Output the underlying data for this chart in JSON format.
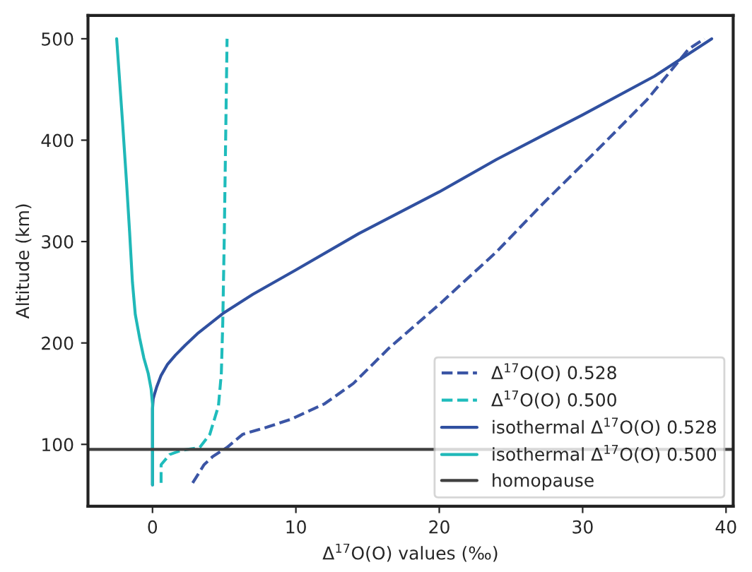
{
  "chart_data": {
    "type": "line",
    "xlabel": "Δ$^{17}$O(O) values (‰)",
    "ylabel": "Altitude (km)",
    "xlim": [
      -4.5,
      40.5
    ],
    "ylim": [
      39,
      523
    ],
    "xticks": [
      0,
      10,
      20,
      30,
      40
    ],
    "yticks": [
      100,
      200,
      300,
      400,
      500
    ],
    "grid": false,
    "legend": "bottom right",
    "marker": "none",
    "series": [
      {
        "name": "Δ$^{17}$O(O) 0.528",
        "color": "#3b55a5",
        "line_style": "dashed",
        "x": [
          2.8,
          3.6,
          4.2,
          5.2,
          6.3,
          8,
          9.7,
          12,
          14,
          16.5,
          20,
          24,
          27.2,
          31,
          34.5,
          37.4,
          38.5
        ],
        "values": [
          62,
          80,
          88,
          97,
          110,
          117,
          125,
          140,
          160,
          195,
          238,
          290,
          337,
          390,
          440,
          490,
          500
        ]
      },
      {
        "name": "Δ$^{17}$O(O) 0.500",
        "color": "#1fbcbc",
        "line_style": "dashed",
        "x": [
          0.6,
          0.6,
          1.2,
          2,
          3.3,
          4,
          4.6,
          4.8,
          4.9,
          5,
          5.2
        ],
        "values": [
          62,
          80,
          90,
          94,
          97,
          110,
          138,
          170,
          220,
          300,
          500
        ]
      },
      {
        "name": "isothermal Δ$^{17}$O(O) 0.528",
        "color": "#3050a0",
        "line_style": "solid",
        "x": [
          0,
          0,
          0.05,
          0.15,
          0.3,
          0.6,
          1.05,
          1.6,
          2.3,
          3.2,
          4.9,
          7,
          10,
          14.4,
          20,
          24,
          30,
          35,
          39
        ],
        "values": [
          60,
          135,
          145,
          150,
          157,
          168,
          179,
          188,
          198,
          210,
          229,
          248,
          272,
          308,
          349,
          381,
          425,
          463,
          500
        ]
      },
      {
        "name": "isothermal Δ$^{17}$O(O) 0.500",
        "color": "#20b8b8",
        "line_style": "solid",
        "x": [
          0,
          0,
          -0.1,
          -0.3,
          -0.6,
          -0.9,
          -1.2,
          -1.4,
          -1.6,
          -1.8,
          -2.1,
          -2.5
        ],
        "values": [
          60,
          140,
          155,
          170,
          185,
          205,
          228,
          260,
          310,
          356,
          420,
          500
        ]
      }
    ],
    "ref_lines": [
      {
        "axis": "y",
        "value": 95,
        "label": "homopause",
        "color": "#404040",
        "line_style": "solid"
      }
    ]
  }
}
